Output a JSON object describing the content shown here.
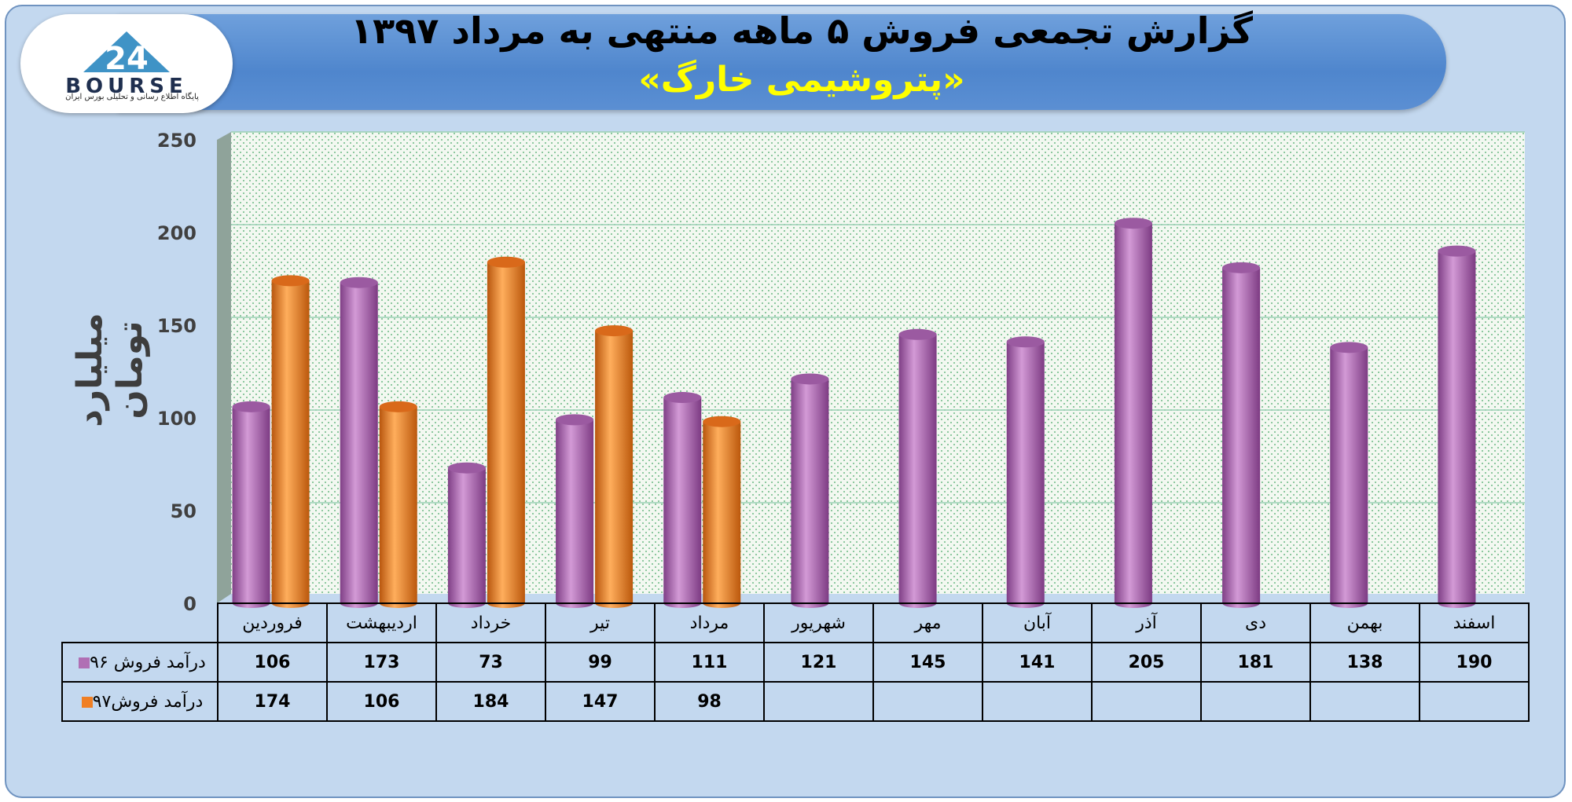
{
  "header": {
    "title": "گزارش تجمعی فروش ۵ ماهه منتهی به مرداد ۱۳۹۷",
    "subtitle": "«پتروشیمی خارگ»"
  },
  "logo": {
    "text": "BOURSE",
    "number": "24",
    "tagline": "پایگاه اطلاع رسانی و تحلیلی بورس ایران"
  },
  "colors": {
    "series1": "#b06fb4",
    "series2": "#f07f24",
    "background": "#c3d8ef",
    "plot_bg": "#f2f8f0"
  },
  "chart_data": {
    "type": "bar",
    "title": "گزارش تجمعی فروش ۵ ماهه منتهی به مرداد ۱۳۹۷",
    "subtitle": "«پتروشیمی خارگ»",
    "ylabel": "میلیارد تومان",
    "xlabel": "",
    "ylim": [
      0,
      250
    ],
    "yticks": [
      0,
      50,
      100,
      150,
      200,
      250
    ],
    "grid": true,
    "legend": "data-table",
    "categories": [
      "فروردین",
      "اردیبهشت",
      "خرداد",
      "تیر",
      "مرداد",
      "شهریور",
      "مهر",
      "آبان",
      "آذر",
      "دی",
      "بهمن",
      "اسفند"
    ],
    "series": [
      {
        "name": "درآمد فروش ۹۶",
        "values": [
          106,
          173,
          73,
          99,
          111,
          121,
          145,
          141,
          205,
          181,
          138,
          190
        ]
      },
      {
        "name": "درآمد فروش۹۷",
        "values": [
          174,
          106,
          184,
          147,
          98,
          null,
          null,
          null,
          null,
          null,
          null,
          null
        ]
      }
    ]
  }
}
